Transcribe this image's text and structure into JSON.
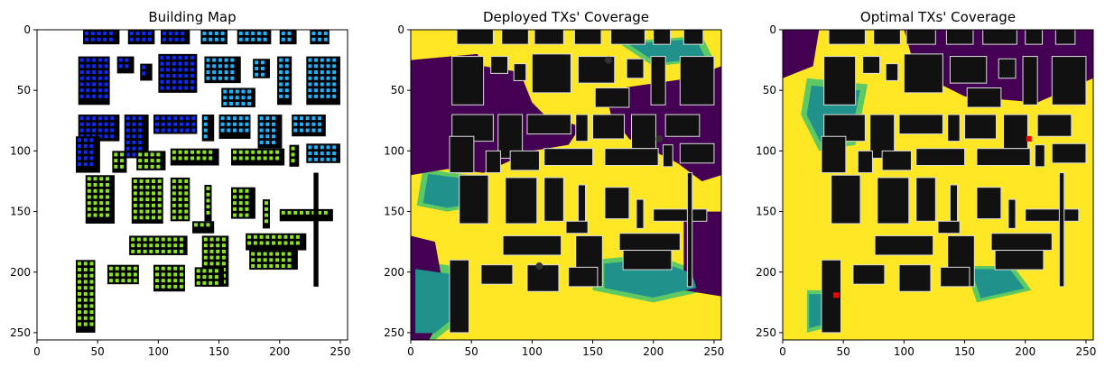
{
  "figure": {
    "panels": [
      {
        "title": "Building Map"
      },
      {
        "title": "Deployed TXs' Coverage"
      },
      {
        "title": "Optimal TXs' Coverage"
      }
    ]
  },
  "chart_data": [
    {
      "type": "heatmap",
      "title": "Building Map",
      "xlim": [
        0,
        256
      ],
      "ylim": [
        256,
        0
      ],
      "xticks": [
        0,
        50,
        100,
        150,
        200,
        250
      ],
      "yticks": [
        0,
        50,
        100,
        150,
        200,
        250
      ],
      "grid": false,
      "colors": {
        "background": "#ffffff",
        "building": "#000000",
        "blue": "#0a2cff",
        "sky": "#1ab4ff",
        "green": "#8ce617",
        "lime": "#b7ff00"
      }
    },
    {
      "type": "heatmap",
      "title": "Deployed TXs' Coverage",
      "xlim": [
        0,
        256
      ],
      "ylim": [
        256,
        0
      ],
      "xticks": [
        0,
        50,
        100,
        150,
        200,
        250
      ],
      "yticks": [
        0,
        50,
        100,
        150,
        200,
        250
      ],
      "grid": false,
      "colors": {
        "low": "#440154",
        "mid_low": "#21918c",
        "mid_high": "#5ec962",
        "high": "#fde725",
        "building": "#111111"
      },
      "tx_markers": [
        {
          "x": 163,
          "y": 25
        },
        {
          "x": 106,
          "y": 195
        },
        {
          "x": 205,
          "y": 90
        }
      ]
    },
    {
      "type": "heatmap",
      "title": "Optimal TXs' Coverage",
      "xlim": [
        0,
        256
      ],
      "ylim": [
        256,
        0
      ],
      "xticks": [
        0,
        50,
        100,
        150,
        200,
        250
      ],
      "yticks": [
        0,
        50,
        100,
        150,
        200,
        250
      ],
      "grid": false,
      "colors": {
        "low": "#440154",
        "mid_low": "#21918c",
        "mid_high": "#5ec962",
        "high": "#fde725",
        "building": "#111111",
        "tx": "#ff0000"
      },
      "tx_markers": [
        {
          "x": 203,
          "y": 90
        },
        {
          "x": 44,
          "y": 219
        }
      ]
    }
  ]
}
